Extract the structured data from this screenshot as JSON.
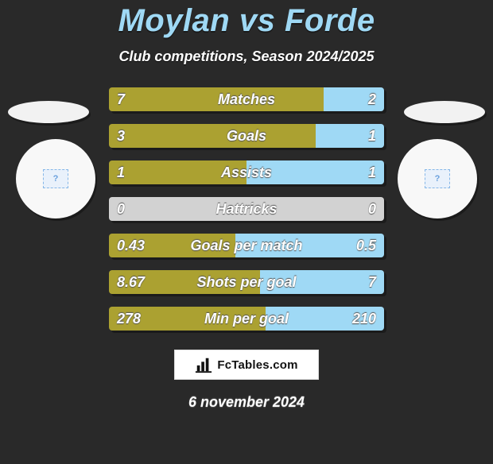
{
  "title": "Moylan vs Forde",
  "subtitle": "Club competitions, Season 2024/2025",
  "date": "6 november 2024",
  "brand": "FcTables.com",
  "colors": {
    "left": "#aba131",
    "right": "#9fd9f5",
    "neutral": "#d2d2d2",
    "bg": "#292929"
  },
  "rows": [
    {
      "label": "Matches",
      "lv": "7",
      "rv": "2",
      "lw": 78,
      "rw": 22,
      "lcolor": "#aba131",
      "rcolor": "#9fd9f5"
    },
    {
      "label": "Goals",
      "lv": "3",
      "rv": "1",
      "lw": 75,
      "rw": 25,
      "lcolor": "#aba131",
      "rcolor": "#9fd9f5"
    },
    {
      "label": "Assists",
      "lv": "1",
      "rv": "1",
      "lw": 50,
      "rw": 50,
      "lcolor": "#aba131",
      "rcolor": "#9fd9f5"
    },
    {
      "label": "Hattricks",
      "lv": "0",
      "rv": "0",
      "lw": 50,
      "rw": 50,
      "lcolor": "#d2d2d2",
      "rcolor": "#d2d2d2"
    },
    {
      "label": "Goals per match",
      "lv": "0.43",
      "rv": "0.5",
      "lw": 46,
      "rw": 54,
      "lcolor": "#aba131",
      "rcolor": "#9fd9f5"
    },
    {
      "label": "Shots per goal",
      "lv": "8.67",
      "rv": "7",
      "lw": 55,
      "rw": 45,
      "lcolor": "#aba131",
      "rcolor": "#9fd9f5"
    },
    {
      "label": "Min per goal",
      "lv": "278",
      "rv": "210",
      "lw": 57,
      "rw": 43,
      "lcolor": "#aba131",
      "rcolor": "#9fd9f5"
    }
  ]
}
